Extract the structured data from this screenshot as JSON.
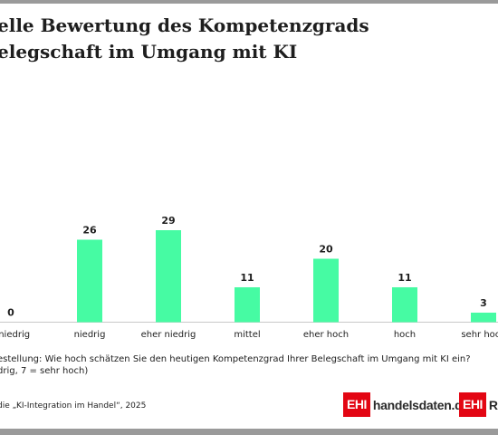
{
  "header": {
    "title_line1": "elle Bewertung des Kompetenzgrads",
    "title_line2": "elegschaft im Umgang mit KI"
  },
  "chart_data": {
    "type": "bar",
    "categories": [
      "r niedrig",
      "niedrig",
      "eher niedrig",
      "mittel",
      "eher hoch",
      "hoch",
      "sehr hoch"
    ],
    "values": [
      0,
      26,
      29,
      11,
      20,
      11,
      3
    ],
    "value_labels": [
      "0",
      "26",
      "29",
      "11",
      "20",
      "11",
      "3"
    ],
    "ylim": [
      0,
      29
    ],
    "grid": false,
    "legend": "none",
    "bar_color": "#46fba3"
  },
  "footer": {
    "question_line1": "estellung: Wie hoch schätzen Sie den heutigen Kompetenzgrad Ihrer Belegschaft im Umgang mit KI ein?",
    "question_line2": "drig, 7 = sehr hoch)",
    "source": "die „KI-Integration im Handel“, 2025"
  },
  "logos": [
    {
      "box": "EHI",
      "text": "handelsdaten.de"
    },
    {
      "box": "EHI",
      "text": "Re"
    }
  ],
  "colors": {
    "accent": "#46fba3",
    "brand_red": "#e30613",
    "rule_gray": "#9a9a9a"
  }
}
